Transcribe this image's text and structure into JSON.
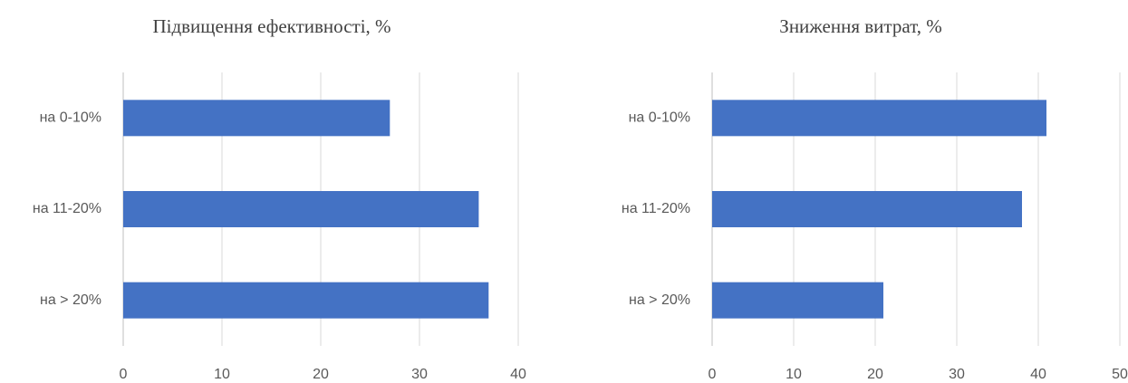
{
  "chart_data": [
    {
      "type": "bar",
      "orientation": "horizontal",
      "title": "Підвищення ефективності, %",
      "categories": [
        "на 0-10%",
        "на 11-20%",
        "на > 20%"
      ],
      "values": [
        27,
        36,
        37
      ],
      "color": "#4472c4",
      "xlim": [
        0,
        40
      ],
      "xticks": [
        0,
        10,
        20,
        30,
        40
      ],
      "grid": true
    },
    {
      "type": "bar",
      "orientation": "horizontal",
      "title": "Зниження витрат, %",
      "categories": [
        "на 0-10%",
        "на 11-20%",
        "на > 20%"
      ],
      "values": [
        41,
        38,
        21
      ],
      "color": "#4472c4",
      "xlim": [
        0,
        50
      ],
      "xticks": [
        0,
        10,
        20,
        30,
        40,
        50
      ],
      "grid": true
    }
  ]
}
